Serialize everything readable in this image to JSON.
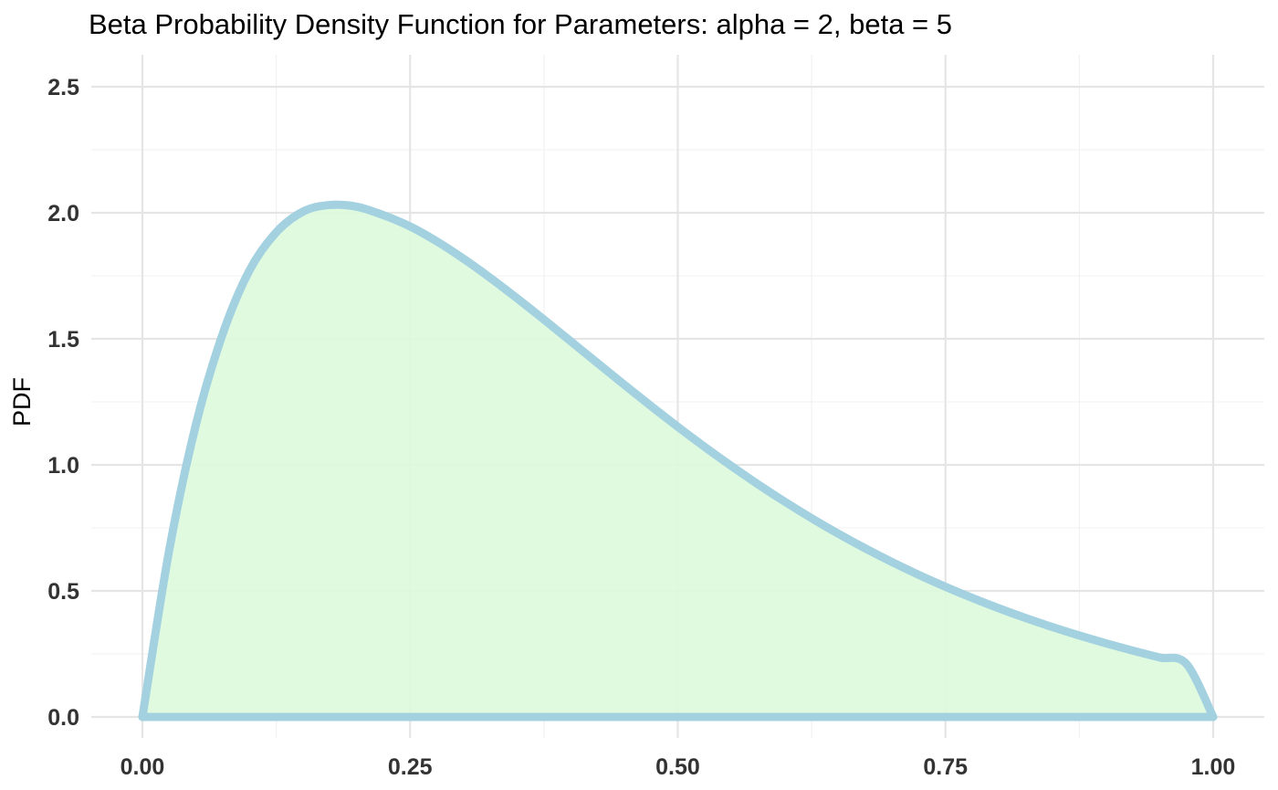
{
  "chart_data": {
    "type": "area",
    "title": "Beta Probability Density Function for Parameters: alpha = 2, beta = 5",
    "xlabel": "",
    "ylabel": "PDF",
    "xlim": [
      0,
      1
    ],
    "ylim": [
      0,
      2.5
    ],
    "x_ticks": [
      "0.00",
      "0.25",
      "0.50",
      "0.75",
      "1.00"
    ],
    "y_ticks": [
      "0.0",
      "0.5",
      "1.0",
      "1.5",
      "2.0",
      "2.5"
    ],
    "x_tick_values": [
      0,
      0.25,
      0.5,
      0.75,
      1
    ],
    "y_tick_values": [
      0,
      0.5,
      1,
      1.5,
      2,
      2.5
    ],
    "grid": true,
    "legend": "none",
    "line_color": "#a3d1e0",
    "fill_color": "#ddfadd",
    "series": [
      {
        "x": [
          0,
          0.025,
          0.05,
          0.075,
          0.1,
          0.125,
          0.15,
          0.175,
          0.2,
          0.225,
          0.25,
          0.275,
          0.3,
          0.325,
          0.35,
          0.375,
          0.4,
          0.425,
          0.45,
          0.475,
          0.5,
          0.525,
          0.55,
          0.575,
          0.6,
          0.625,
          0.65,
          0.675,
          0.7,
          0.725,
          0.75,
          0.775,
          0.8,
          0.825,
          0.85,
          0.875,
          0.9,
          0.925,
          0.95,
          0.975,
          1
        ],
        "y": [
          0,
          0.6608,
          1.1603,
          1.5198,
          1.7715,
          1.9226,
          2.0048,
          2.0311,
          2.0244,
          1.9907,
          1.9458,
          1.8866,
          1.8175,
          1.7415,
          1.6606,
          1.5764,
          1.4904,
          1.4039,
          1.3179,
          1.2334,
          1.1512,
          1.0717,
          0.9955,
          0.9227,
          0.8537,
          0.7883,
          0.7267,
          0.6688,
          0.6145,
          0.5637,
          0.5163,
          0.472,
          0.4307,
          0.3922,
          0.3564,
          0.323,
          0.2919,
          0.2629,
          0.2358,
          0.2105,
          0
        ]
      }
    ]
  }
}
